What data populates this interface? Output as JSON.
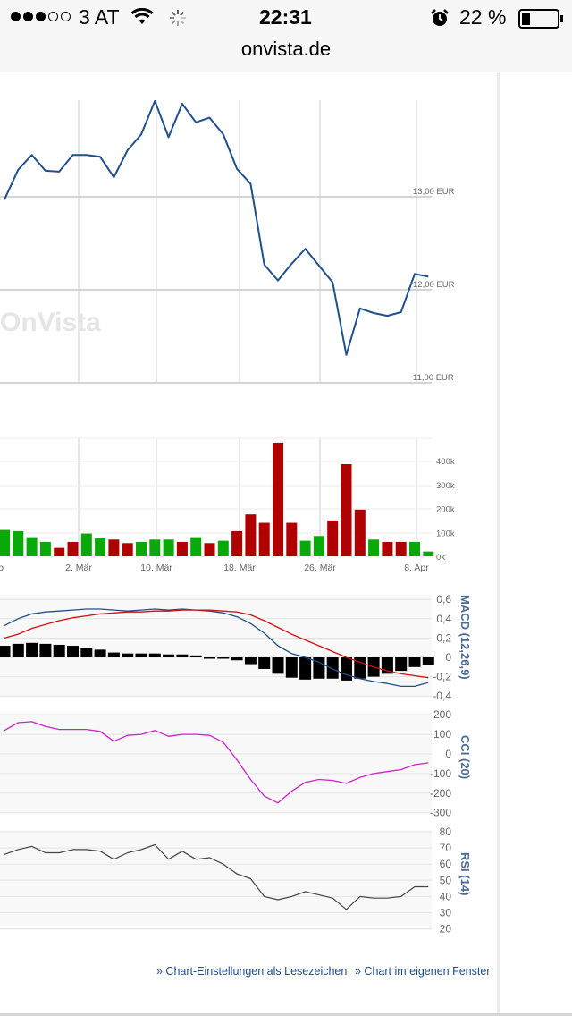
{
  "status_bar": {
    "carrier": "3 AT",
    "time": "22:31",
    "battery": "22 %",
    "signal_filled": 3,
    "signal_total": 5
  },
  "browser": {
    "url": "onvista.de"
  },
  "watermark": "OnVista",
  "colors": {
    "price_line": "#1f4f8c",
    "up": "#0aa90a",
    "down": "#b00000",
    "macd_signal": "#d01010",
    "cci": "#cc22cc",
    "rsi": "#444444",
    "link": "#1e4b8c",
    "axis_title": "#4a6a96"
  },
  "chart_data": [
    {
      "type": "line",
      "panel": "price",
      "y_tick_labels": [
        "13,00 EUR",
        "12,00 EUR",
        "11,00 EUR"
      ],
      "y_ticks": [
        13,
        12,
        11
      ],
      "series": [
        {
          "values": [
            12.97,
            13.29,
            13.45,
            13.28,
            13.27,
            13.45,
            13.45,
            13.43,
            13.21,
            13.5,
            13.67,
            14.03,
            13.64,
            14.0,
            13.8,
            13.85,
            13.67,
            13.3,
            13.14,
            12.27,
            12.1,
            12.28,
            12.44,
            12.26,
            12.08,
            11.3,
            11.8,
            11.75,
            11.72,
            11.76,
            12.17,
            12.14
          ]
        }
      ]
    },
    {
      "type": "bar",
      "panel": "volume",
      "x_tick_labels": [
        "eb",
        "2. Mär",
        "10. Mär",
        "18. Mär",
        "26. Mär",
        "8. Apr"
      ],
      "y_tick_labels": [
        "400k",
        "300k",
        "200k",
        "100k",
        "0k"
      ],
      "y_ticks": [
        400000,
        300000,
        200000,
        100000,
        0
      ],
      "values": [
        110000,
        105000,
        80000,
        60000,
        35000,
        60000,
        95000,
        75000,
        70000,
        55000,
        60000,
        70000,
        70000,
        60000,
        80000,
        55000,
        65000,
        105000,
        175000,
        140000,
        475000,
        140000,
        65000,
        85000,
        150000,
        385000,
        195000,
        70000,
        60000,
        60000,
        60000,
        20000
      ],
      "direction": [
        "up",
        "up",
        "up",
        "up",
        "down",
        "down",
        "up",
        "up",
        "down",
        "down",
        "up",
        "up",
        "up",
        "down",
        "up",
        "down",
        "up",
        "down",
        "down",
        "down",
        "down",
        "down",
        "up",
        "up",
        "down",
        "down",
        "down",
        "up",
        "down",
        "down",
        "up",
        "up"
      ]
    },
    {
      "type": "line",
      "panel": "macd",
      "axis_title": "MACD (12,26,9)",
      "y_tick_labels": [
        "0,6",
        "0,4",
        "0,2",
        "0",
        "-0,2",
        "-0,4"
      ],
      "y_ticks": [
        0.6,
        0.4,
        0.2,
        0,
        -0.2,
        -0.4
      ],
      "series": [
        {
          "values": [
            0.33,
            0.4,
            0.45,
            0.47,
            0.48,
            0.49,
            0.5,
            0.5,
            0.49,
            0.48,
            0.49,
            0.5,
            0.49,
            0.5,
            0.49,
            0.48,
            0.46,
            0.42,
            0.35,
            0.25,
            0.12,
            0.04,
            0.0,
            -0.05,
            -0.12,
            -0.18,
            -0.22,
            -0.25,
            -0.27,
            -0.3,
            -0.3,
            -0.26
          ]
        },
        {
          "values": [
            0.2,
            0.24,
            0.3,
            0.34,
            0.38,
            0.41,
            0.43,
            0.45,
            0.46,
            0.47,
            0.47,
            0.48,
            0.48,
            0.49,
            0.49,
            0.49,
            0.48,
            0.47,
            0.44,
            0.38,
            0.31,
            0.24,
            0.18,
            0.12,
            0.06,
            0.0,
            -0.05,
            -0.1,
            -0.14,
            -0.17,
            -0.19,
            -0.21
          ]
        }
      ],
      "histogram": [
        0.12,
        0.14,
        0.15,
        0.14,
        0.13,
        0.12,
        0.1,
        0.08,
        0.05,
        0.04,
        0.04,
        0.04,
        0.03,
        0.03,
        0.02,
        0.0,
        -0.01,
        -0.03,
        -0.07,
        -0.12,
        -0.17,
        -0.21,
        -0.23,
        -0.22,
        -0.22,
        -0.24,
        -0.22,
        -0.2,
        -0.17,
        -0.14,
        -0.1,
        -0.08
      ]
    },
    {
      "type": "line",
      "panel": "cci",
      "axis_title": "CCI (20)",
      "y_tick_labels": [
        "200",
        "100",
        "0",
        "-100",
        "-200",
        "-300"
      ],
      "y_ticks": [
        200,
        100,
        0,
        -100,
        -200,
        -300
      ],
      "series": [
        {
          "values": [
            120,
            160,
            165,
            140,
            125,
            125,
            125,
            115,
            65,
            95,
            100,
            120,
            90,
            100,
            100,
            95,
            60,
            -30,
            -130,
            -215,
            -250,
            -190,
            -145,
            -130,
            -135,
            -150,
            -120,
            -100,
            -90,
            -80,
            -55,
            -45
          ]
        }
      ]
    },
    {
      "type": "line",
      "panel": "rsi",
      "axis_title": "RSI (14)",
      "y_tick_labels": [
        "80",
        "70",
        "60",
        "50",
        "40",
        "30",
        "20"
      ],
      "y_ticks": [
        80,
        70,
        60,
        50,
        40,
        30,
        20
      ],
      "series": [
        {
          "values": [
            66,
            69,
            71,
            67,
            67,
            69,
            69,
            68,
            63,
            67,
            69,
            72,
            63,
            68,
            63,
            64,
            60,
            54,
            51,
            40,
            38,
            40,
            43,
            41,
            39,
            32,
            40,
            39,
            39,
            40,
            46,
            46
          ]
        }
      ]
    }
  ],
  "links": {
    "bookmark": "» Chart-Einstellungen als Lesezeichen",
    "window": "» Chart im eigenen Fenster"
  }
}
